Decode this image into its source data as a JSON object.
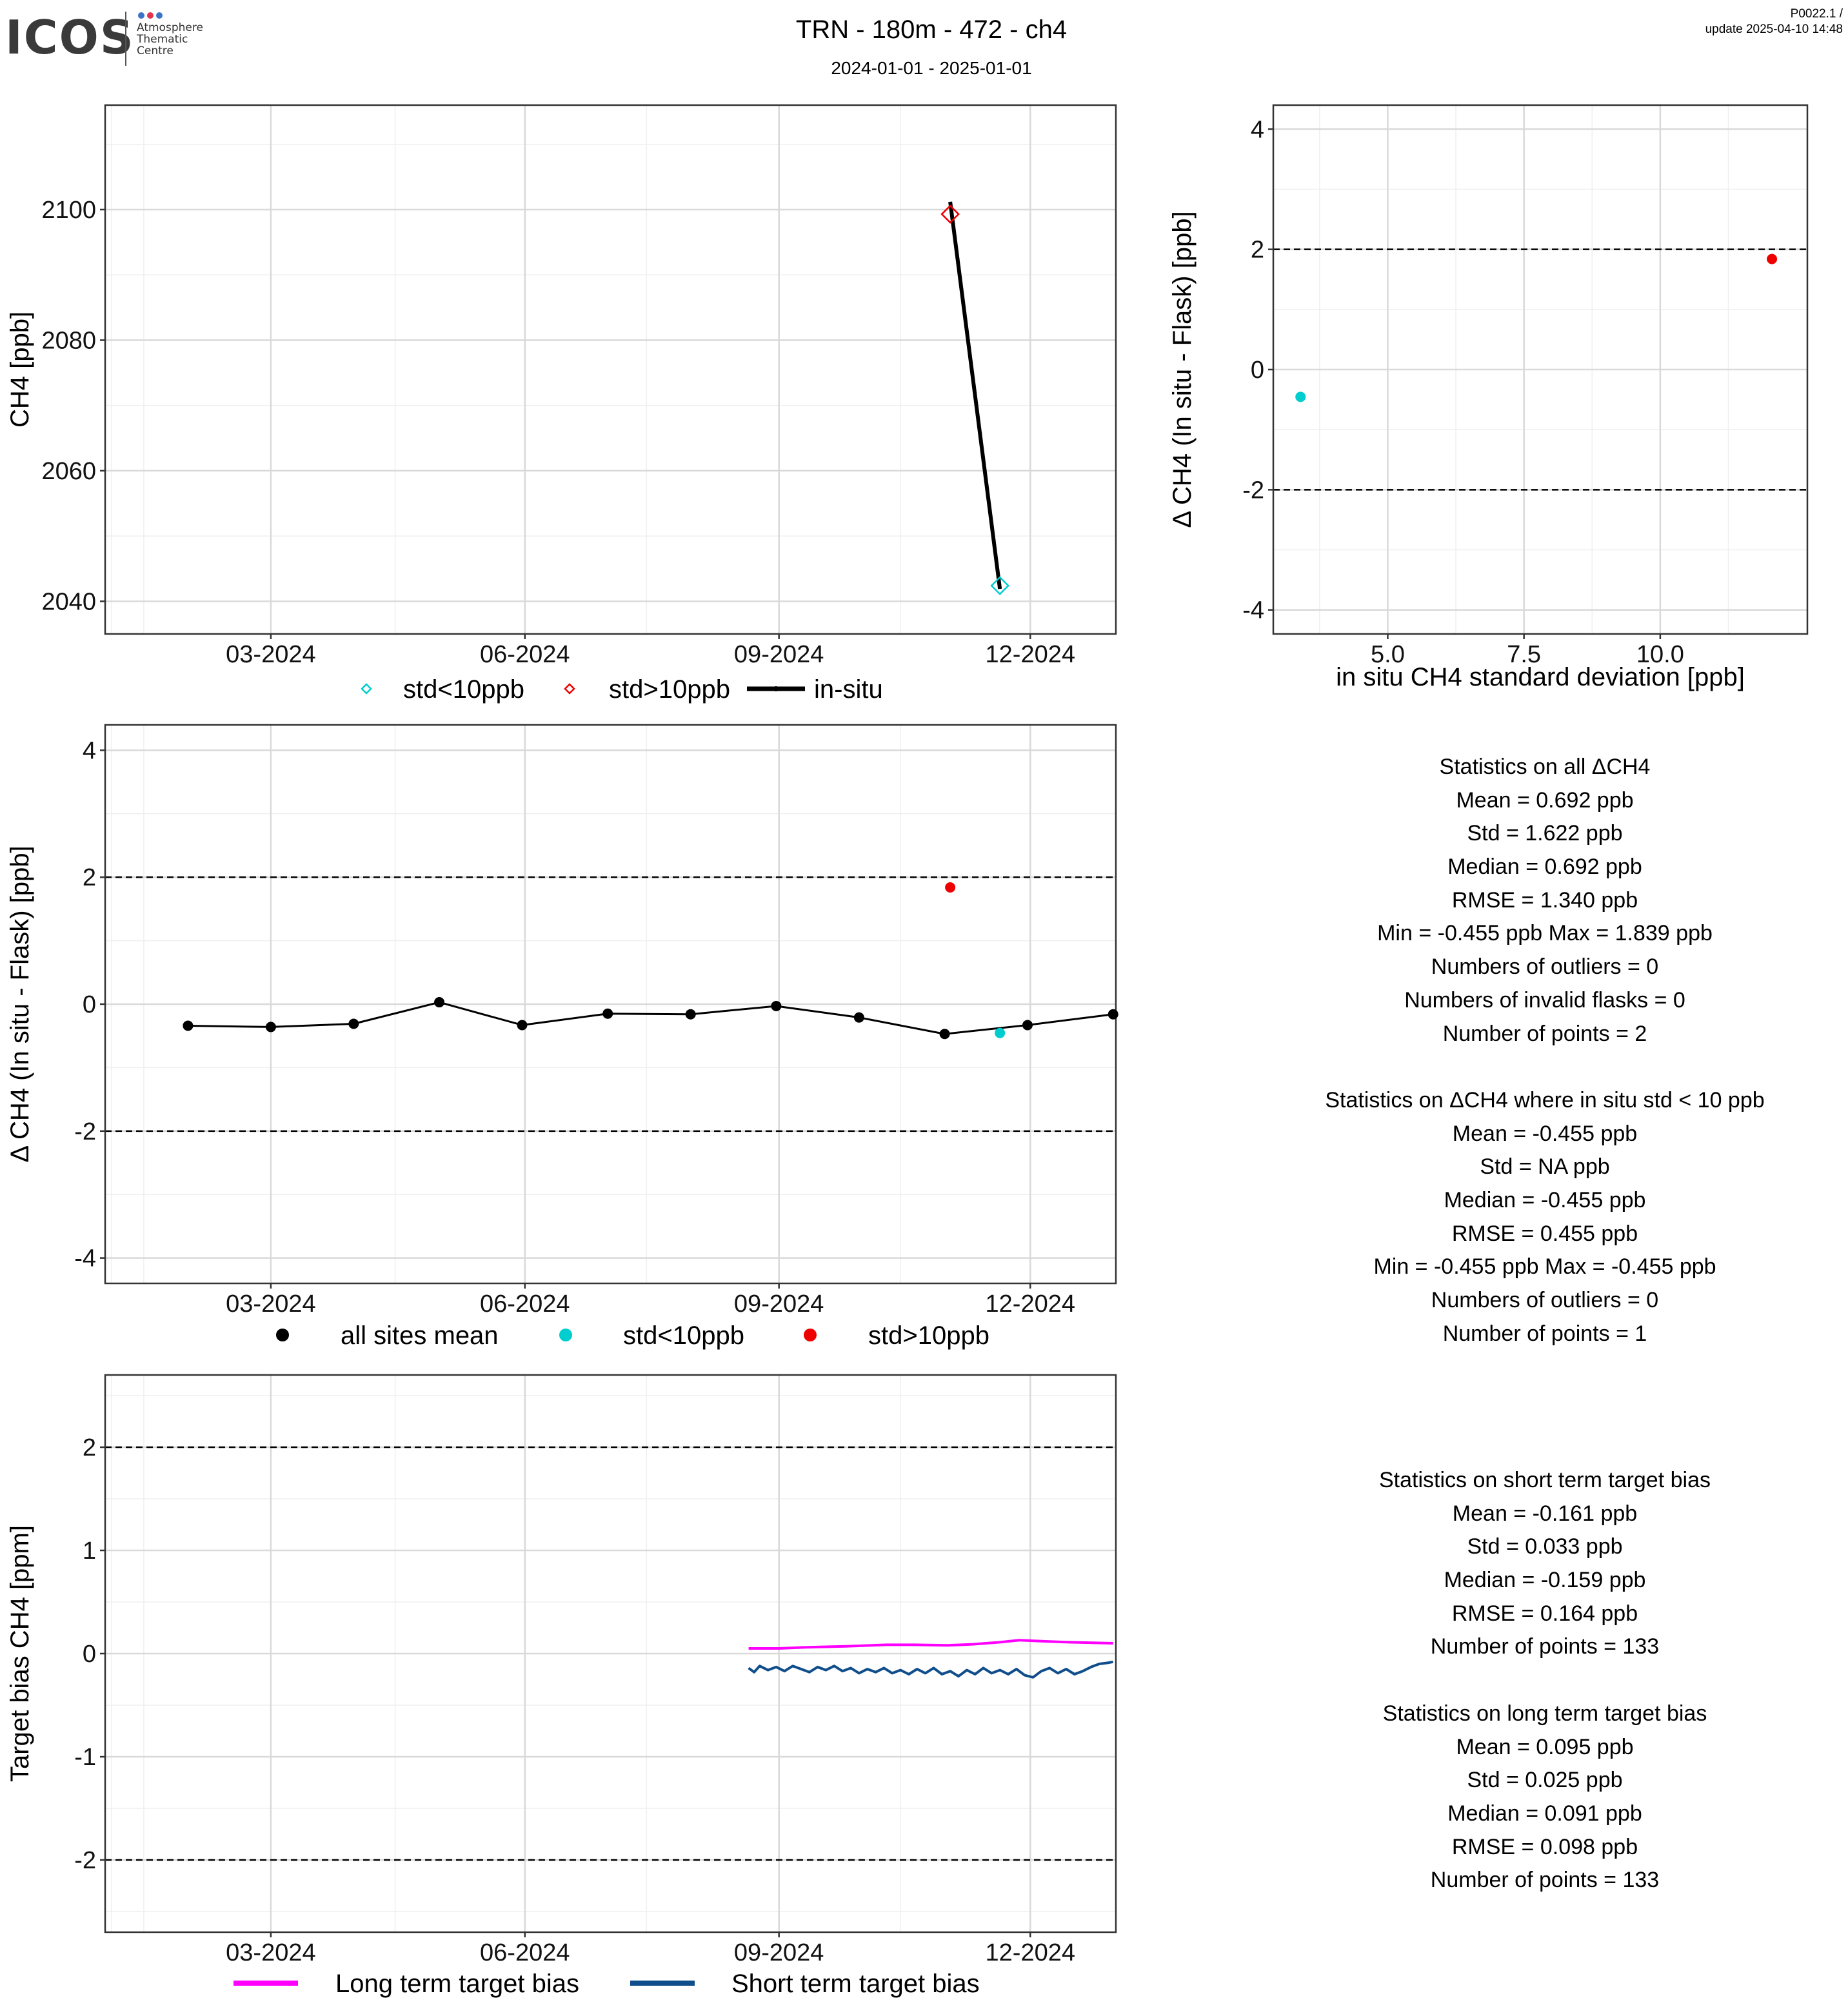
{
  "header": {
    "logo": "ICOS",
    "logo_sub": [
      "Atmosphere",
      "Thematic",
      "Centre"
    ],
    "title": "TRN - 180m - 472 - ch4",
    "subtitle": "2024-01-01 - 2025-01-01",
    "meta_line1": "P0022.1 /",
    "meta_line2": "update  2025-04-10 14:48"
  },
  "colors": {
    "cyan": "#00CDCD",
    "red": "#EE0000",
    "black": "#000000",
    "magenta": "#FF00FF",
    "navy": "#104E8B",
    "grid_major": "#d9d9d9",
    "grid_minor": "#efefef",
    "logo_dots": [
      "#3b73c8",
      "#e0344f",
      "#3b73c8"
    ]
  },
  "chart_data": [
    {
      "id": "ch4-timeseries",
      "type": "line",
      "ylabel": "CH4 [ppb]",
      "xlim": [
        "2024-01-01",
        "2025-01-01"
      ],
      "ylim": [
        2035,
        2116
      ],
      "x_ticks": [
        "2024-03-01",
        "2024-06-01",
        "2024-09-01",
        "2024-12-01"
      ],
      "x_tick_labels": [
        "03-2024",
        "06-2024",
        "09-2024",
        "12-2024"
      ],
      "y_ticks": [
        2040,
        2060,
        2080,
        2100
      ],
      "grid": true,
      "series": [
        {
          "name": "std<10ppb",
          "kind": "diamond",
          "color": "#00CDCD",
          "points": [
            [
              "2024-11-20",
              2042.4
            ]
          ]
        },
        {
          "name": "std>10ppb",
          "kind": "diamond",
          "color": "#EE0000",
          "points": [
            [
              "2024-11-02",
              2099.3
            ]
          ]
        },
        {
          "name": "in-situ",
          "kind": "line",
          "color": "#000000",
          "points": [
            [
              "2024-11-02",
              2101.2
            ],
            [
              "2024-11-20",
              2041.9
            ]
          ]
        }
      ],
      "legend": [
        "std<10ppb",
        "std>10ppb",
        "in-situ"
      ]
    },
    {
      "id": "delta-vs-std",
      "type": "scatter",
      "xlabel": "in situ CH4 standard deviation [ppb]",
      "ylabel": "Δ CH4 (In situ - Flask) [ppb]",
      "xlim": [
        2.9,
        12.7
      ],
      "ylim": [
        -4.4,
        4.4
      ],
      "x_ticks": [
        5.0,
        7.5,
        10.0
      ],
      "x_tick_labels": [
        "5.0",
        "7.5",
        "10.0"
      ],
      "y_ticks": [
        -4,
        -2,
        0,
        2,
        4
      ],
      "hlines": [
        -2,
        2
      ],
      "grid": true,
      "series": [
        {
          "name": "std<10ppb",
          "color": "#00CDCD",
          "points": [
            [
              3.4,
              -0.455
            ]
          ]
        },
        {
          "name": "std>10ppb",
          "color": "#EE0000",
          "points": [
            [
              12.05,
              1.839
            ]
          ]
        }
      ]
    },
    {
      "id": "delta-timeseries",
      "type": "line",
      "ylabel": "Δ CH4 (In situ - Flask) [ppb]",
      "xlim": [
        "2024-01-01",
        "2025-01-01"
      ],
      "ylim": [
        -4.4,
        4.4
      ],
      "x_ticks": [
        "2024-03-01",
        "2024-06-01",
        "2024-09-01",
        "2024-12-01"
      ],
      "x_tick_labels": [
        "03-2024",
        "06-2024",
        "09-2024",
        "12-2024"
      ],
      "y_ticks": [
        -4,
        -2,
        0,
        2,
        4
      ],
      "hlines": [
        -2,
        2
      ],
      "grid": true,
      "series": [
        {
          "name": "all sites mean",
          "kind": "line-points",
          "color": "#000000",
          "points": [
            [
              "2024-01-31",
              -0.34
            ],
            [
              "2024-03-01",
              -0.36
            ],
            [
              "2024-03-31",
              -0.31
            ],
            [
              "2024-05-01",
              0.03
            ],
            [
              "2024-05-31",
              -0.33
            ],
            [
              "2024-07-01",
              -0.15
            ],
            [
              "2024-07-31",
              -0.16
            ],
            [
              "2024-08-31",
              -0.03
            ],
            [
              "2024-09-30",
              -0.21
            ],
            [
              "2024-10-31",
              -0.47
            ],
            [
              "2024-11-30",
              -0.33
            ],
            [
              "2024-12-31",
              -0.16
            ]
          ]
        },
        {
          "name": "std<10ppb",
          "kind": "points",
          "color": "#00CDCD",
          "points": [
            [
              "2024-11-20",
              -0.455
            ]
          ]
        },
        {
          "name": "std>10ppb",
          "kind": "points",
          "color": "#EE0000",
          "points": [
            [
              "2024-11-02",
              1.839
            ]
          ]
        }
      ],
      "legend": [
        "all sites mean",
        "std<10ppb",
        "std>10ppb"
      ]
    },
    {
      "id": "target-bias",
      "type": "line",
      "ylabel": "Target bias CH4 [ppm]",
      "xlim": [
        "2024-01-01",
        "2025-01-01"
      ],
      "ylim": [
        -2.7,
        2.7
      ],
      "x_ticks": [
        "2024-03-01",
        "2024-06-01",
        "2024-09-01",
        "2024-12-01"
      ],
      "x_tick_labels": [
        "03-2024",
        "06-2024",
        "09-2024",
        "12-2024"
      ],
      "y_ticks": [
        -2,
        -1,
        0,
        1,
        2
      ],
      "y_tick_labels": [
        "-2",
        "-1",
        "0",
        "1",
        "2"
      ],
      "hlines": [
        -2,
        2
      ],
      "grid": true,
      "series": [
        {
          "name": "Long term target bias",
          "color": "#FF00FF",
          "points": [
            [
              "2024-08-21",
              0.05
            ],
            [
              "2024-09-01",
              0.05
            ],
            [
              "2024-09-10",
              0.06
            ],
            [
              "2024-09-25",
              0.07
            ],
            [
              "2024-10-10",
              0.085
            ],
            [
              "2024-10-20",
              0.085
            ],
            [
              "2024-11-01",
              0.08
            ],
            [
              "2024-11-10",
              0.09
            ],
            [
              "2024-11-20",
              0.11
            ],
            [
              "2024-11-27",
              0.13
            ],
            [
              "2024-12-05",
              0.12
            ],
            [
              "2024-12-15",
              0.11
            ],
            [
              "2024-12-31",
              0.1
            ]
          ]
        },
        {
          "name": "Short term target bias",
          "color": "#104E8B",
          "points": [
            [
              "2024-08-21",
              -0.14
            ],
            [
              "2024-08-23",
              -0.18
            ],
            [
              "2024-08-25",
              -0.12
            ],
            [
              "2024-08-28",
              -0.16
            ],
            [
              "2024-08-31",
              -0.13
            ],
            [
              "2024-09-03",
              -0.17
            ],
            [
              "2024-09-06",
              -0.12
            ],
            [
              "2024-09-09",
              -0.15
            ],
            [
              "2024-09-12",
              -0.18
            ],
            [
              "2024-09-15",
              -0.13
            ],
            [
              "2024-09-18",
              -0.16
            ],
            [
              "2024-09-21",
              -0.12
            ],
            [
              "2024-09-24",
              -0.17
            ],
            [
              "2024-09-27",
              -0.14
            ],
            [
              "2024-09-30",
              -0.19
            ],
            [
              "2024-10-03",
              -0.15
            ],
            [
              "2024-10-06",
              -0.18
            ],
            [
              "2024-10-09",
              -0.14
            ],
            [
              "2024-10-12",
              -0.19
            ],
            [
              "2024-10-15",
              -0.16
            ],
            [
              "2024-10-18",
              -0.2
            ],
            [
              "2024-10-21",
              -0.15
            ],
            [
              "2024-10-24",
              -0.19
            ],
            [
              "2024-10-27",
              -0.14
            ],
            [
              "2024-10-30",
              -0.2
            ],
            [
              "2024-11-02",
              -0.17
            ],
            [
              "2024-11-05",
              -0.22
            ],
            [
              "2024-11-08",
              -0.16
            ],
            [
              "2024-11-11",
              -0.2
            ],
            [
              "2024-11-14",
              -0.14
            ],
            [
              "2024-11-17",
              -0.19
            ],
            [
              "2024-11-20",
              -0.16
            ],
            [
              "2024-11-23",
              -0.2
            ],
            [
              "2024-11-26",
              -0.15
            ],
            [
              "2024-11-29",
              -0.21
            ],
            [
              "2024-12-02",
              -0.23
            ],
            [
              "2024-12-05",
              -0.17
            ],
            [
              "2024-12-08",
              -0.14
            ],
            [
              "2024-12-11",
              -0.19
            ],
            [
              "2024-12-14",
              -0.15
            ],
            [
              "2024-12-17",
              -0.2
            ],
            [
              "2024-12-20",
              -0.17
            ],
            [
              "2024-12-23",
              -0.13
            ],
            [
              "2024-12-26",
              -0.1
            ],
            [
              "2024-12-29",
              -0.09
            ],
            [
              "2024-12-31",
              -0.08
            ]
          ]
        }
      ],
      "legend": [
        "Long term target bias",
        "Short term target bias"
      ]
    }
  ],
  "stats_all": [
    "Statistics on all ΔCH4",
    "Mean =  0.692 ppb",
    "Std =  1.622 ppb",
    "Median =  0.692 ppb",
    "RMSE =  1.340 ppb",
    "Min =  -0.455 ppb Max =  1.839 ppb",
    "Numbers of outliers =  0",
    "Numbers of invalid flasks =  0",
    "Number of points =  2",
    "",
    "Statistics on ΔCH4 where in situ std < 10 ppb",
    "Mean =  -0.455 ppb",
    "Std =  NA ppb",
    "Median =  -0.455 ppb",
    "RMSE =  0.455 ppb",
    "Min =  -0.455 ppb Max =  -0.455 ppb",
    "Numbers of outliers =  0",
    "Number of points =  1"
  ],
  "stats_target": [
    "Statistics on short term target bias",
    "Mean =  -0.161 ppb",
    "Std =  0.033 ppb",
    "Median =  -0.159 ppb",
    "RMSE =  0.164 ppb",
    "Number of points =  133",
    "",
    "Statistics on long term target bias",
    "Mean =  0.095 ppb",
    "Std =  0.025 ppb",
    "Median =  0.091 ppb",
    "RMSE =  0.098 ppb",
    "Number of points =  133"
  ]
}
